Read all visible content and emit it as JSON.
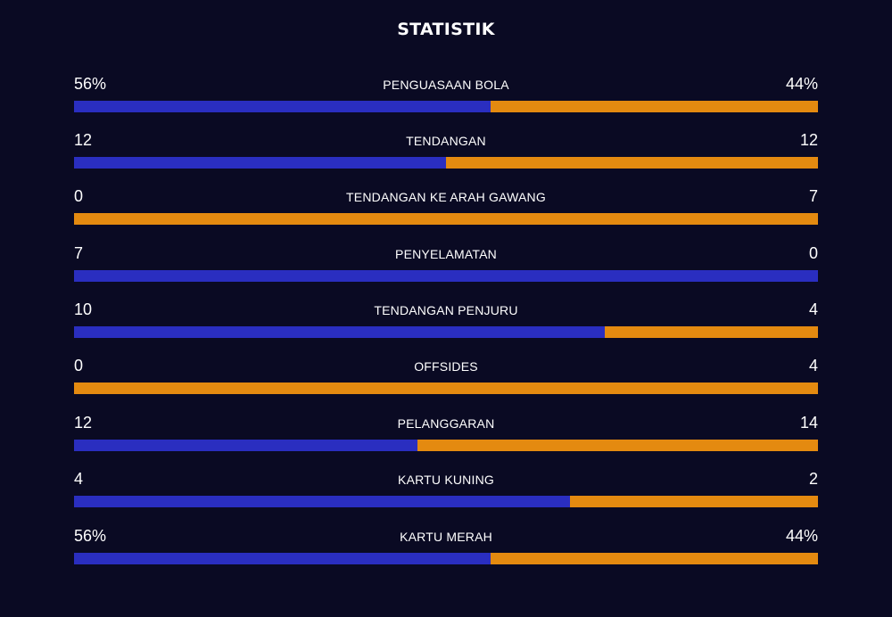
{
  "title": "STATISTIK",
  "colors": {
    "background": "#0a0a23",
    "home": "#2a2ec0",
    "away": "#e48a10",
    "text": "#ffffff"
  },
  "stats": [
    {
      "label": "PENGUASAAN BOLA",
      "home": "56%",
      "away": "44%",
      "home_share": 0.56
    },
    {
      "label": "TENDANGAN",
      "home": "12",
      "away": "12",
      "home_share": 0.5
    },
    {
      "label": "TENDANGAN KE ARAH GAWANG",
      "home": "0",
      "away": "7",
      "home_share": 0.0
    },
    {
      "label": "PENYELAMATAN",
      "home": "7",
      "away": "0",
      "home_share": 1.0
    },
    {
      "label": "TENDANGAN PENJURU",
      "home": "10",
      "away": "4",
      "home_share": 0.714
    },
    {
      "label": "OFFSIDES",
      "home": "0",
      "away": "4",
      "home_share": 0.0
    },
    {
      "label": "PELANGGARAN",
      "home": "12",
      "away": "14",
      "home_share": 0.462
    },
    {
      "label": "KARTU KUNING",
      "home": "4",
      "away": "2",
      "home_share": 0.667
    },
    {
      "label": "KARTU MERAH",
      "home": "56%",
      "away": "44%",
      "home_share": 0.56
    }
  ]
}
